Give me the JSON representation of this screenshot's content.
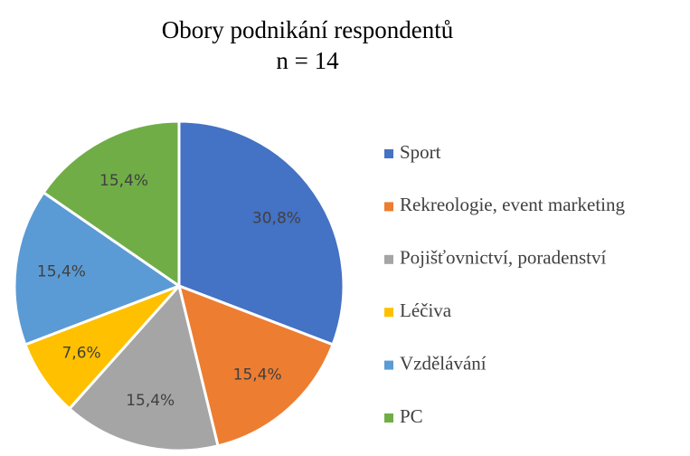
{
  "chart_data": {
    "type": "pie",
    "title": "Obory podnikání respondentů",
    "subtitle": "n = 14",
    "categories": [
      "Sport",
      "Rekreologie, event marketing",
      "Pojišťovnictví, poradenství",
      "Léčiva",
      "Vzdělávání",
      "PC"
    ],
    "values": [
      30.8,
      15.4,
      15.4,
      7.6,
      15.4,
      15.4
    ],
    "value_labels": [
      "30,8%",
      "15,4%",
      "15,4%",
      "7,6%",
      "15,4%",
      "15,4%"
    ],
    "colors": [
      "#4472c4",
      "#ed7d31",
      "#a5a5a5",
      "#ffc000",
      "#5b9bd5",
      "#70ad47"
    ],
    "legend": "right"
  }
}
